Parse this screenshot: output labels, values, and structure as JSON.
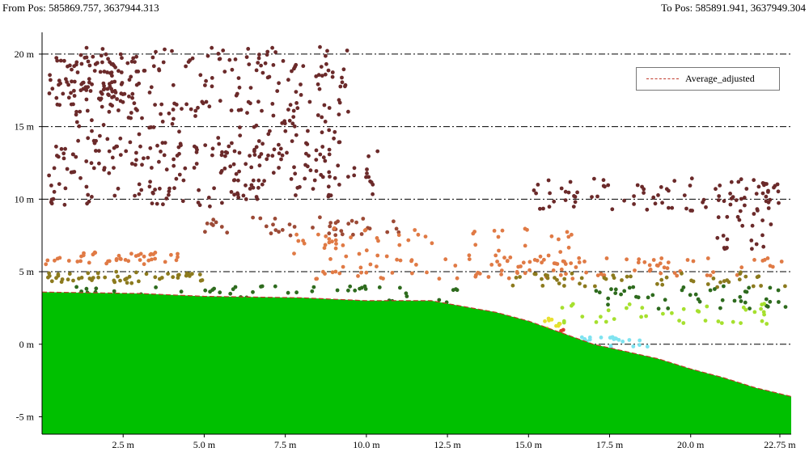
{
  "header": {
    "from_pos": "From Pos: 585869.757, 3637944.313",
    "to_pos": "To Pos: 585891.941, 3637949.304"
  },
  "legend": {
    "entries": [
      {
        "label": "Average_adjusted",
        "color": "#c0392b",
        "style": "dashed"
      }
    ]
  },
  "chart_data": {
    "type": "scatter",
    "xlim": [
      0,
      23.1
    ],
    "ylim": [
      -6.2,
      21.5
    ],
    "grid": "horizontal dash-dot",
    "legend_position": "top-right",
    "x_tick_labels": [
      "2.5 m",
      "5.0 m",
      "7.5 m",
      "10.0 m",
      "12.5 m",
      "15.0 m",
      "17.5 m",
      "20.0 m",
      "22.75 m"
    ],
    "x_ticks": [
      2.5,
      5.0,
      7.5,
      10.0,
      12.5,
      15.0,
      17.5,
      20.0,
      22.75
    ],
    "y_tick_labels": [
      "20 m",
      "15 m",
      "10 m",
      "5 m",
      "0 m",
      "-5 m"
    ],
    "y_ticks": [
      20,
      15,
      10,
      5,
      0,
      -5
    ],
    "ground": {
      "color": "#00c000",
      "x": [
        0,
        3,
        5,
        8,
        10,
        12,
        13,
        14,
        15,
        16,
        17,
        18,
        19,
        20,
        21,
        22,
        23.1
      ],
      "y": [
        3.6,
        3.5,
        3.3,
        3.2,
        3.0,
        3.0,
        2.6,
        2.2,
        1.6,
        0.8,
        0.0,
        -0.5,
        -1.0,
        -1.7,
        -2.3,
        -3.0,
        -3.6
      ]
    },
    "average_adjusted": {
      "color": "#c0392b",
      "x": [
        0,
        3,
        5,
        8,
        10,
        12,
        13,
        14,
        15,
        16,
        17,
        18,
        19,
        20,
        21,
        22,
        23.1
      ],
      "y": [
        3.6,
        3.5,
        3.3,
        3.2,
        3.0,
        3.0,
        2.6,
        2.2,
        1.6,
        0.8,
        0.0,
        -0.5,
        -1.0,
        -1.7,
        -2.3,
        -3.0,
        -3.6
      ]
    },
    "point_classes": [
      {
        "color": "#6b2a2a",
        "clusters": [
          {
            "x": [
              0.2,
              3.0
            ],
            "y": [
              16.0,
              20.0
            ],
            "n": 110
          },
          {
            "x": [
              1.0,
              9.5
            ],
            "y": [
              13.0,
              20.5
            ],
            "n": 240
          },
          {
            "x": [
              0.2,
              7.0
            ],
            "y": [
              9.5,
              14.0
            ],
            "n": 120
          },
          {
            "x": [
              5.5,
              10.5
            ],
            "y": [
              10.0,
              13.5
            ],
            "n": 70
          },
          {
            "x": [
              15.0,
              23.0
            ],
            "y": [
              9.2,
              11.5
            ],
            "n": 80
          },
          {
            "x": [
              20.8,
              22.5
            ],
            "y": [
              6.5,
              11.2
            ],
            "n": 35
          }
        ]
      },
      {
        "color": "#9c4a36",
        "clusters": [
          {
            "x": [
              4.5,
              11.0
            ],
            "y": [
              7.5,
              8.8
            ],
            "n": 45
          }
        ]
      },
      {
        "color": "#e07a45",
        "clusters": [
          {
            "x": [
              0.1,
              4.2
            ],
            "y": [
              5.5,
              6.4
            ],
            "n": 45
          },
          {
            "x": [
              7.5,
              16.5
            ],
            "y": [
              4.5,
              8.0
            ],
            "n": 110
          },
          {
            "x": [
              14.0,
              23.0
            ],
            "y": [
              4.7,
              6.0
            ],
            "n": 60
          }
        ]
      },
      {
        "color": "#8c7a1e",
        "clusters": [
          {
            "x": [
              0.1,
              5.0
            ],
            "y": [
              4.2,
              5.0
            ],
            "n": 50
          },
          {
            "x": [
              14.5,
              23.0
            ],
            "y": [
              3.9,
              5.0
            ],
            "n": 50
          }
        ]
      },
      {
        "color": "#2e6b1e",
        "clusters": [
          {
            "x": [
              0.2,
              13.0
            ],
            "y": [
              2.8,
              4.0
            ],
            "n": 70
          },
          {
            "x": [
              17.0,
              23.0
            ],
            "y": [
              2.4,
              4.0
            ],
            "n": 45
          }
        ]
      },
      {
        "color": "#a6e02e",
        "clusters": [
          {
            "x": [
              15.5,
              22.5
            ],
            "y": [
              1.4,
              2.8
            ],
            "n": 40
          }
        ]
      },
      {
        "color": "#e8e030",
        "clusters": [
          {
            "x": [
              15.5,
              16.0
            ],
            "y": [
              1.0,
              1.8
            ],
            "n": 8
          }
        ]
      },
      {
        "color": "#e03a2a",
        "clusters": [
          {
            "x": [
              15.9,
              16.1
            ],
            "y": [
              0.6,
              1.0
            ],
            "n": 4
          }
        ]
      },
      {
        "color": "#7fe3f0",
        "clusters": [
          {
            "x": [
              16.2,
              18.9
            ],
            "y": [
              -0.5,
              0.5
            ],
            "n": 30
          }
        ]
      }
    ]
  }
}
